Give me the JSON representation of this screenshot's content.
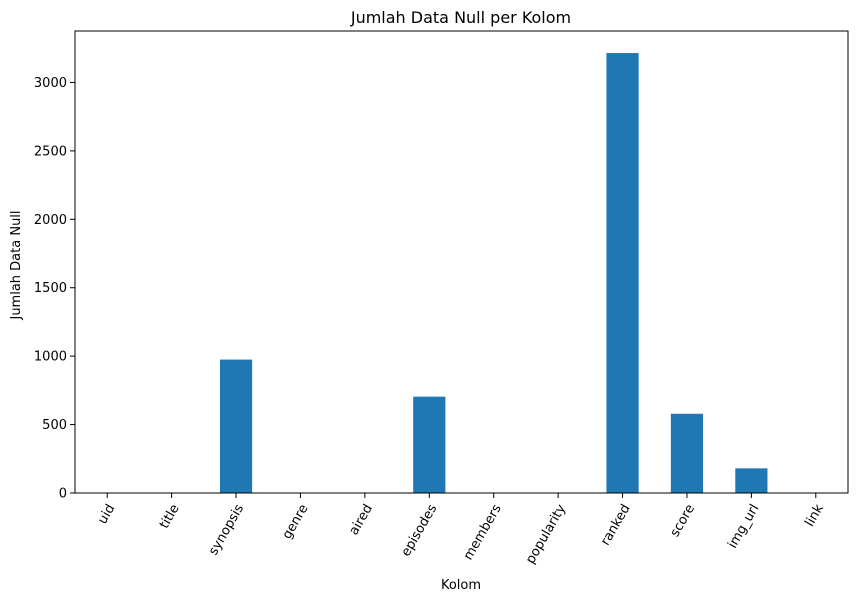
{
  "chart_data": {
    "type": "bar",
    "title": "Jumlah Data Null per Kolom",
    "xlabel": "Kolom",
    "ylabel": "Jumlah Data Null",
    "categories": [
      "uid",
      "title",
      "synopsis",
      "genre",
      "aired",
      "episodes",
      "members",
      "popularity",
      "ranked",
      "score",
      "img_url",
      "link"
    ],
    "values": [
      0,
      0,
      975,
      0,
      0,
      704,
      0,
      0,
      3215,
      579,
      180,
      0
    ],
    "ylim": [
      0,
      3376
    ],
    "yticks": [
      0,
      500,
      1000,
      1500,
      2000,
      2500,
      3000
    ],
    "grid": false,
    "legend": "none",
    "bar_color": "#1f77b4",
    "x_tick_rotation": -60
  }
}
